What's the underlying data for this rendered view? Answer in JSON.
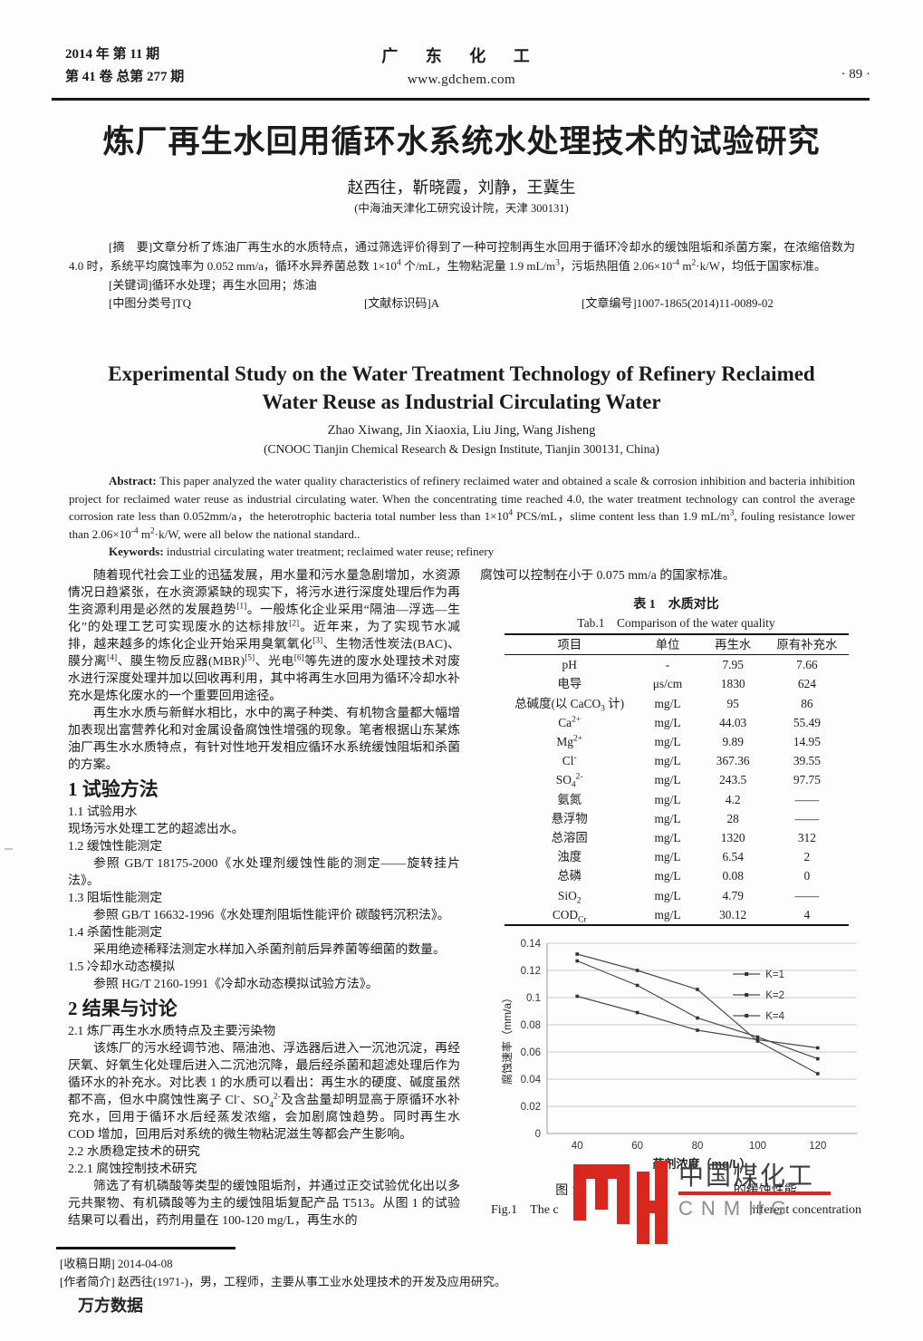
{
  "header": {
    "issue_line1": "2014 年  第 11 期",
    "issue_line2": "第 41 卷  总第 277 期",
    "journal_name": "广 东 化 工",
    "journal_url": "www.gdchem.com",
    "page_number": "· 89 ·"
  },
  "title_block": {
    "title_zh": "炼厂再生水回用循环水系统水处理技术的试验研究",
    "authors_zh": "赵西往，靳晓霞，刘静，王冀生",
    "affiliation_zh": "(中海油天津化工研究设计院，天津 300131)"
  },
  "abstract_zh": {
    "abstract": "[摘　要]文章分析了炼油厂再生水的水质特点，通过筛选评价得到了一种可控制再生水回用于循环冷却水的缓蚀阻垢和杀菌方案，在浓缩倍数为 4.0 时，系统平均腐蚀率为 0.052 mm/a，循环水异养菌总数 1×10^{4} 个/mL，生物粘泥量 1.9 mL/m^{3}，污垢热阻值 2.06×10^{-4} m^{2}·k/W，均低于国家标准。",
    "keywords": "[关键词]循环水处理；再生水回用；炼油",
    "clc": "[中图分类号]TQ",
    "doc_code": "[文献标识码]A",
    "article_id": "[文章编号]1007-1865(2014)11-0089-02"
  },
  "title_block_en": {
    "title_line1": "Experimental Study on the Water Treatment Technology of Refinery Reclaimed",
    "title_line2": "Water Reuse as Industrial Circulating Water",
    "authors": "Zhao Xiwang, Jin Xiaoxia, Liu Jing, Wang Jisheng",
    "affiliation": "(CNOOC Tianjin Chemical Research & Design Institute, Tianjin 300131, China)"
  },
  "abstract_en": {
    "label": "Abstract: ",
    "abstract": "This paper analyzed the water quality characteristics of refinery reclaimed water and obtained a scale & corrosion inhibition and bacteria inhibition project for reclaimed water reuse as industrial circulating water. When the concentrating time reached 4.0, the water treatment technology can control the average corrosion rate less than 0.052mm/a，the heterotrophic bacteria total number less than 1×10^{4} PCS/mL，slime content less than 1.9 mL/m^{3}, fouling resistance lower than 2.06×10^{-4} m^{2}·k/W, were all below the national standard..",
    "keywords_label": "Keywords: ",
    "keywords": "industrial circulating water treatment;  reclaimed water reuse;  refinery"
  },
  "left_column": {
    "blocks": [
      {
        "type": "p",
        "indent": true,
        "text": "随着现代社会工业的迅猛发展，用水量和污水量急剧增加，水资源情况日趋紧张，在水资源紧缺的现实下，将污水进行深度处理后作为再生资源利用是必然的发展趋势^{[1]}。一般炼化企业采用“隔油—浮选—生化”的处理工艺可实现废水的达标排放^{[2]}。近年来，为了实现节水减排，越来越多的炼化企业开始采用臭氧氧化^{[3]}、生物活性炭法(BAC)、膜分离^{[4]}、膜生物反应器(MBR)^{[5]}、光电^{[6]}等先进的废水处理技术对废水进行深度处理并加以回收再利用，其中将再生水回用为循环冷却水补充水是炼化废水的一个重要回用途径。"
      },
      {
        "type": "p",
        "indent": true,
        "text": "再生水水质与新鲜水相比，水中的离子种类、有机物含量都大幅增加表现出富营养化和对金属设备腐蚀性增强的现象。笔者根据山东某炼油厂再生水水质特点，有针对性地开发相应循环水系统缓蚀阻垢和杀菌的方案。"
      },
      {
        "type": "h1",
        "text": "1  试验方法"
      },
      {
        "type": "h2",
        "text": "1.1  试验用水"
      },
      {
        "type": "p",
        "indent": false,
        "text": "现场污水处理工艺的超滤出水。"
      },
      {
        "type": "h2",
        "text": "1.2  缓蚀性能测定"
      },
      {
        "type": "p",
        "indent": true,
        "text": "参照 GB/T 18175-2000《水处理剂缓蚀性能的测定——旋转挂片法》。"
      },
      {
        "type": "h2",
        "text": "1.3  阻垢性能测定"
      },
      {
        "type": "p",
        "indent": true,
        "text": "参照 GB/T 16632-1996《水处理剂阻垢性能评价  碳酸钙沉积法》。"
      },
      {
        "type": "h2",
        "text": "1.4  杀菌性能测定"
      },
      {
        "type": "p",
        "indent": true,
        "text": "采用绝迹稀释法测定水样加入杀菌剂前后异养菌等细菌的数量。"
      },
      {
        "type": "h2",
        "text": "1.5  冷却水动态模拟"
      },
      {
        "type": "p",
        "indent": true,
        "text": "参照 HG/T 2160-1991《冷却水动态模拟试验方法》。"
      },
      {
        "type": "h1",
        "text": "2  结果与讨论"
      },
      {
        "type": "h2",
        "text": "2.1  炼厂再生水水质特点及主要污染物"
      },
      {
        "type": "p",
        "indent": true,
        "text": "该炼厂的污水经调节池、隔油池、浮选器后进入一沉池沉淀，再经厌氧、好氧生化处理后进入二沉池沉降，最后经杀菌和超滤处理后作为循环水的补充水。对比表 1 的水质可以看出：再生水的硬度、碱度虽然都不高，但水中腐蚀性离子 Cl^{-}、SO_{4}^{2-}及含盐量却明显高于原循环水补充水，回用于循环水后经蒸发浓缩，会加剧腐蚀趋势。同时再生水 COD 增加，回用后对系统的微生物粘泥滋生等都会产生影响。"
      },
      {
        "type": "h2",
        "text": "2.2  水质稳定技术的研究"
      },
      {
        "type": "h2",
        "text": "2.2.1  腐蚀控制技术研究"
      },
      {
        "type": "p",
        "indent": true,
        "text": "筛选了有机磷酸等类型的缓蚀阻垢剂，并通过正交试验优化出以多元共聚物、有机磷酸等为主的缓蚀阻垢复配产品 T513。从图 1 的试验结果可以看出，药剂用量在 100-120 mg/L，再生水的"
      }
    ]
  },
  "right_column": {
    "intro_text": "腐蚀可以控制在小于 0.075 mm/a 的国家标准。",
    "table": {
      "title_zh": "表 1　水质对比",
      "title_en": "Tab.1　Comparison of the water quality",
      "headers": [
        "项目",
        "单位",
        "再生水",
        "原有补充水"
      ],
      "col_widths": [
        "38%",
        "19%",
        "19%",
        "24%"
      ],
      "rows": [
        [
          "pH",
          "-",
          "7.95",
          "7.66"
        ],
        [
          "电导",
          "μs/cm",
          "1830",
          "624"
        ],
        [
          "总碱度(以 CaCO_{3} 计)",
          "mg/L",
          "95",
          "86"
        ],
        [
          "Ca^{2+}",
          "mg/L",
          "44.03",
          "55.49"
        ],
        [
          "Mg^{2+}",
          "mg/L",
          "9.89",
          "14.95"
        ],
        [
          "Cl^{-}",
          "mg/L",
          "367.36",
          "39.55"
        ],
        [
          "SO_{4}^{2-}",
          "mg/L",
          "243.5",
          "97.75"
        ],
        [
          "氨氮",
          "mg/L",
          "4.2",
          "——"
        ],
        [
          "悬浮物",
          "mg/L",
          "28",
          "——"
        ],
        [
          "总溶固",
          "mg/L",
          "1320",
          "312"
        ],
        [
          "浊度",
          "mg/L",
          "6.54",
          "2"
        ],
        [
          "总磷",
          "mg/L",
          "0.08",
          "0"
        ],
        [
          "SiO_{2}",
          "mg/L",
          "4.79",
          "——"
        ],
        [
          "COD_{Cr}",
          "mg/L",
          "30.12",
          "4"
        ]
      ]
    },
    "figure_caption": {
      "zh_pre": "图 1",
      "zh_post": "的缓蚀性能",
      "en_pre": "Fig.1　The c",
      "en_post": "ifferent concentration"
    }
  },
  "chart_data": {
    "type": "line",
    "x": [
      40,
      60,
      80,
      100,
      120
    ],
    "series": [
      {
        "name": "K=1",
        "values": [
          0.101,
          0.089,
          0.076,
          0.069,
          0.063
        ]
      },
      {
        "name": "K=2",
        "values": [
          0.127,
          0.109,
          0.085,
          0.071,
          0.055
        ]
      },
      {
        "name": "K=4",
        "values": [
          0.132,
          0.12,
          0.106,
          0.068,
          0.044
        ]
      }
    ],
    "xlabel": "药剂浓度（mg/L）",
    "ylabel": "腐蚀速率（mm/a）",
    "ylim": [
      0,
      0.14
    ],
    "ytick_step": 0.02,
    "xlim": [
      30,
      133
    ],
    "grid": true,
    "legend_position": "inside-right",
    "line_color": "#4b4b4b",
    "grid_color": "#b9b9b9"
  },
  "watermark": {
    "logo_text": "中国煤化工",
    "logo_sub": "CNMHG",
    "red": "#d8271e"
  },
  "footer": {
    "received": "[收稿日期]  2014-04-08",
    "bio": "[作者简介]  赵西往(1971-)，男，工程师，主要从事工业水处理技术的开发及应用研究。",
    "wanfang": "万方数据"
  }
}
